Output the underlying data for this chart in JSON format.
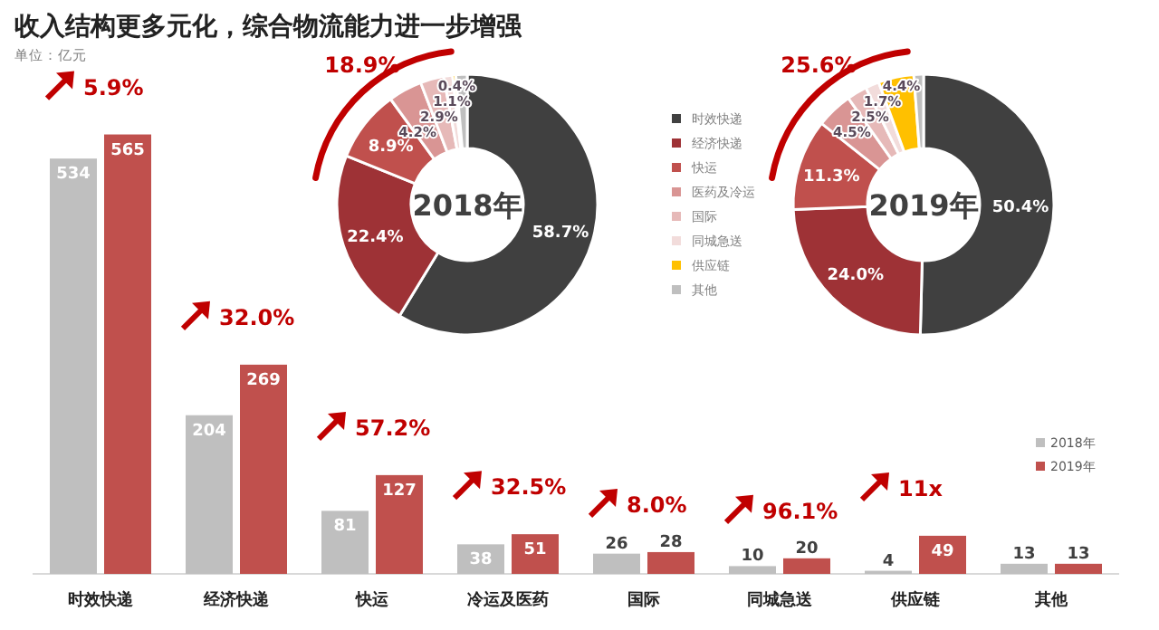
{
  "chart_data": [
    {
      "type": "bar",
      "title": "收入结构更多元化，综合物流能力进一步增强",
      "categories": [
        "时效快递",
        "经济快递",
        "快运",
        "冷运及医药",
        "国际",
        "同城急送",
        "供应链",
        "其他"
      ],
      "series": [
        {
          "name": "2018年",
          "color": "#bfbfbf",
          "values": [
            534,
            204,
            81,
            38,
            26,
            10,
            4,
            13
          ]
        },
        {
          "name": "2019年",
          "color": "#c0504d",
          "values": [
            565,
            269,
            127,
            51,
            28,
            20,
            49,
            13
          ]
        }
      ],
      "data_labels": true,
      "legend": "bottom right",
      "annotations": [
        "单位：亿元",
        "5.9%",
        "32.0%",
        "57.2%",
        "32.5%",
        "8.0%",
        "96.1%",
        "11x"
      ]
    },
    {
      "type": "donut",
      "title": "2018年",
      "categories": [
        "时效快递",
        "经济快递",
        "快运",
        "医药及冷运",
        "国际",
        "同城急送",
        "供应链",
        "其他"
      ],
      "values": [
        58.7,
        22.4,
        8.9,
        4.2,
        2.9,
        1.1,
        0.4,
        1.4
      ],
      "value_labels": [
        "58.7%",
        "22.4%",
        "8.9%",
        "4.2%",
        "2.9%",
        "1.1%",
        "0.4%",
        null
      ],
      "colors": [
        "#404040",
        "#9e3236",
        "#c0504d",
        "#d99594",
        "#e6b9b8",
        "#f2dcdb",
        "#ffc000",
        "#bfbfbf"
      ],
      "annotations": [
        "18.9%"
      ],
      "legend": "right"
    },
    {
      "type": "donut",
      "title": "2019年",
      "categories": [
        null,
        null,
        null,
        null,
        null,
        null,
        null,
        null
      ],
      "values": [
        50.4,
        24.0,
        11.3,
        4.5,
        2.5,
        1.7,
        4.4,
        1.2
      ],
      "value_labels": [
        "50.4%",
        "24.0%",
        "11.3%",
        "4.5%",
        "2.5%",
        "1.7%",
        "4.4%",
        null
      ],
      "colors": [
        "#404040",
        "#9e3236",
        "#c0504d",
        "#d99594",
        "#e6b9b8",
        "#f2dcdb",
        "#ffc000",
        "#bfbfbf"
      ],
      "annotations": [
        "25.6%"
      ]
    }
  ]
}
